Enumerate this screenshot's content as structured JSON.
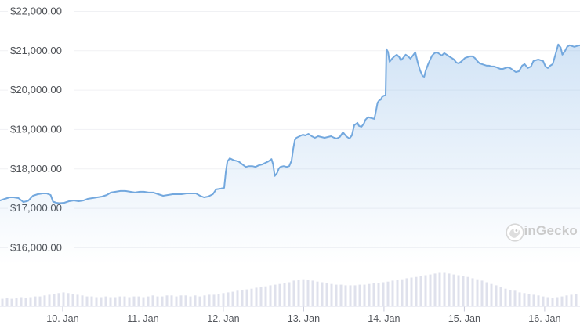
{
  "watermark": {
    "text": "CoinGecko",
    "icon": "coingecko-gecko-logo"
  },
  "colors": {
    "line": "#73a8de",
    "area_fill": "#79aee4",
    "grid": "#f0f1f4",
    "volume_bar": "#dfe1ec",
    "tick": "#c7c9da",
    "y_label_text": "#4f5257",
    "x_label_text": "#54575d",
    "watermark_text": "#cbcbcb",
    "background": "#ffffff"
  },
  "chart_data": {
    "type": "area",
    "title": "",
    "xlabel": "",
    "ylabel": "",
    "grid": "horizontal",
    "legend": "none",
    "x_axis": {
      "tick_labels": [
        "10. Jan",
        "11. Jan",
        "12. Jan",
        "13. Jan",
        "14. Jan",
        "15. Jan",
        "16. Jan"
      ],
      "tick_days": [
        0,
        1,
        2,
        3,
        4,
        5,
        6
      ]
    },
    "y_axis": {
      "tick_labels": [
        "$16,000.00",
        "$17,000.00",
        "$18,000.00",
        "$19,000.00",
        "$20,000.00",
        "$21,000.00",
        "$22,000.00"
      ],
      "tick_values": [
        16000,
        17000,
        18000,
        19000,
        20000,
        21000,
        22000
      ]
    },
    "xlim_days": [
      -0.78,
      6.44
    ],
    "ylim": [
      15322,
      22278
    ],
    "series": [
      {
        "name": "price_usd",
        "points": [
          [
            -0.78,
            17190
          ],
          [
            -0.72,
            17230
          ],
          [
            -0.66,
            17270
          ],
          [
            -0.61,
            17270
          ],
          [
            -0.55,
            17250
          ],
          [
            -0.49,
            17150
          ],
          [
            -0.43,
            17180
          ],
          [
            -0.37,
            17310
          ],
          [
            -0.31,
            17350
          ],
          [
            -0.25,
            17370
          ],
          [
            -0.2,
            17370
          ],
          [
            -0.15,
            17330
          ],
          [
            -0.12,
            17160
          ],
          [
            -0.08,
            17130
          ],
          [
            -0.04,
            17120
          ],
          [
            0.02,
            17130
          ],
          [
            0.08,
            17170
          ],
          [
            0.14,
            17190
          ],
          [
            0.2,
            17170
          ],
          [
            0.26,
            17190
          ],
          [
            0.31,
            17230
          ],
          [
            0.37,
            17250
          ],
          [
            0.43,
            17270
          ],
          [
            0.49,
            17290
          ],
          [
            0.55,
            17330
          ],
          [
            0.6,
            17390
          ],
          [
            0.66,
            17410
          ],
          [
            0.72,
            17430
          ],
          [
            0.78,
            17430
          ],
          [
            0.84,
            17410
          ],
          [
            0.9,
            17390
          ],
          [
            0.96,
            17410
          ],
          [
            1.01,
            17410
          ],
          [
            1.07,
            17390
          ],
          [
            1.13,
            17390
          ],
          [
            1.19,
            17350
          ],
          [
            1.25,
            17310
          ],
          [
            1.31,
            17330
          ],
          [
            1.37,
            17350
          ],
          [
            1.43,
            17350
          ],
          [
            1.48,
            17350
          ],
          [
            1.54,
            17370
          ],
          [
            1.6,
            17370
          ],
          [
            1.66,
            17370
          ],
          [
            1.71,
            17310
          ],
          [
            1.76,
            17270
          ],
          [
            1.81,
            17290
          ],
          [
            1.87,
            17350
          ],
          [
            1.91,
            17470
          ],
          [
            1.97,
            17490
          ],
          [
            2.01,
            17510
          ],
          [
            2.03,
            17900
          ],
          [
            2.05,
            18180
          ],
          [
            2.08,
            18260
          ],
          [
            2.13,
            18210
          ],
          [
            2.19,
            18180
          ],
          [
            2.24,
            18100
          ],
          [
            2.28,
            18040
          ],
          [
            2.32,
            18060
          ],
          [
            2.36,
            18060
          ],
          [
            2.4,
            18040
          ],
          [
            2.44,
            18080
          ],
          [
            2.48,
            18100
          ],
          [
            2.52,
            18140
          ],
          [
            2.56,
            18180
          ],
          [
            2.6,
            18240
          ],
          [
            2.62,
            18100
          ],
          [
            2.64,
            17810
          ],
          [
            2.67,
            17890
          ],
          [
            2.69,
            18000
          ],
          [
            2.71,
            18040
          ],
          [
            2.75,
            18060
          ],
          [
            2.79,
            18040
          ],
          [
            2.82,
            18060
          ],
          [
            2.85,
            18200
          ],
          [
            2.87,
            18500
          ],
          [
            2.89,
            18720
          ],
          [
            2.91,
            18780
          ],
          [
            2.95,
            18820
          ],
          [
            2.99,
            18860
          ],
          [
            3.02,
            18840
          ],
          [
            3.06,
            18880
          ],
          [
            3.1,
            18820
          ],
          [
            3.14,
            18780
          ],
          [
            3.18,
            18820
          ],
          [
            3.22,
            18800
          ],
          [
            3.26,
            18780
          ],
          [
            3.3,
            18800
          ],
          [
            3.34,
            18820
          ],
          [
            3.38,
            18780
          ],
          [
            3.41,
            18760
          ],
          [
            3.45,
            18800
          ],
          [
            3.49,
            18920
          ],
          [
            3.53,
            18820
          ],
          [
            3.57,
            18760
          ],
          [
            3.6,
            18840
          ],
          [
            3.63,
            19100
          ],
          [
            3.67,
            19160
          ],
          [
            3.69,
            19080
          ],
          [
            3.72,
            19060
          ],
          [
            3.75,
            19140
          ],
          [
            3.77,
            19240
          ],
          [
            3.79,
            19280
          ],
          [
            3.81,
            19300
          ],
          [
            3.84,
            19280
          ],
          [
            3.88,
            19260
          ],
          [
            3.9,
            19460
          ],
          [
            3.92,
            19670
          ],
          [
            3.94,
            19730
          ],
          [
            3.96,
            19750
          ],
          [
            3.98,
            19830
          ],
          [
            4.0,
            19850
          ],
          [
            4.02,
            19860
          ],
          [
            4.03,
            21030
          ],
          [
            4.05,
            20960
          ],
          [
            4.07,
            20710
          ],
          [
            4.1,
            20790
          ],
          [
            4.13,
            20850
          ],
          [
            4.16,
            20890
          ],
          [
            4.19,
            20830
          ],
          [
            4.21,
            20750
          ],
          [
            4.24,
            20810
          ],
          [
            4.27,
            20890
          ],
          [
            4.3,
            20850
          ],
          [
            4.33,
            20790
          ],
          [
            4.36,
            20870
          ],
          [
            4.39,
            20950
          ],
          [
            4.42,
            20690
          ],
          [
            4.45,
            20490
          ],
          [
            4.48,
            20350
          ],
          [
            4.5,
            20330
          ],
          [
            4.52,
            20490
          ],
          [
            4.55,
            20650
          ],
          [
            4.58,
            20790
          ],
          [
            4.6,
            20870
          ],
          [
            4.63,
            20930
          ],
          [
            4.66,
            20950
          ],
          [
            4.69,
            20910
          ],
          [
            4.72,
            20870
          ],
          [
            4.75,
            20930
          ],
          [
            4.78,
            20890
          ],
          [
            4.81,
            20850
          ],
          [
            4.84,
            20810
          ],
          [
            4.87,
            20770
          ],
          [
            4.9,
            20690
          ],
          [
            4.93,
            20670
          ],
          [
            4.96,
            20710
          ],
          [
            4.99,
            20770
          ],
          [
            5.01,
            20810
          ],
          [
            5.04,
            20830
          ],
          [
            5.07,
            20850
          ],
          [
            5.1,
            20850
          ],
          [
            5.13,
            20810
          ],
          [
            5.16,
            20730
          ],
          [
            5.19,
            20670
          ],
          [
            5.22,
            20650
          ],
          [
            5.25,
            20630
          ],
          [
            5.28,
            20610
          ],
          [
            5.31,
            20610
          ],
          [
            5.34,
            20590
          ],
          [
            5.37,
            20590
          ],
          [
            5.4,
            20570
          ],
          [
            5.42,
            20550
          ],
          [
            5.45,
            20530
          ],
          [
            5.48,
            20530
          ],
          [
            5.51,
            20550
          ],
          [
            5.54,
            20570
          ],
          [
            5.57,
            20550
          ],
          [
            5.6,
            20510
          ],
          [
            5.64,
            20450
          ],
          [
            5.68,
            20470
          ],
          [
            5.72,
            20610
          ],
          [
            5.75,
            20650
          ],
          [
            5.79,
            20550
          ],
          [
            5.83,
            20590
          ],
          [
            5.86,
            20730
          ],
          [
            5.89,
            20750
          ],
          [
            5.92,
            20770
          ],
          [
            5.95,
            20750
          ],
          [
            5.98,
            20730
          ],
          [
            6.01,
            20590
          ],
          [
            6.04,
            20550
          ],
          [
            6.07,
            20610
          ],
          [
            6.1,
            20650
          ],
          [
            6.12,
            20790
          ],
          [
            6.15,
            21010
          ],
          [
            6.17,
            21150
          ],
          [
            6.2,
            21070
          ],
          [
            6.22,
            20890
          ],
          [
            6.25,
            20970
          ],
          [
            6.28,
            21090
          ],
          [
            6.31,
            21130
          ],
          [
            6.34,
            21110
          ],
          [
            6.37,
            21090
          ],
          [
            6.4,
            21110
          ],
          [
            6.44,
            21130
          ]
        ]
      }
    ],
    "volume": {
      "note": "relative bar heights, no numeric axis shown",
      "relative_heights": [
        0.23,
        0.26,
        0.23,
        0.26,
        0.28,
        0.26,
        0.28,
        0.3,
        0.3,
        0.33,
        0.35,
        0.37,
        0.4,
        0.42,
        0.4,
        0.37,
        0.35,
        0.33,
        0.3,
        0.3,
        0.28,
        0.28,
        0.3,
        0.28,
        0.28,
        0.3,
        0.3,
        0.28,
        0.3,
        0.3,
        0.28,
        0.3,
        0.33,
        0.3,
        0.3,
        0.33,
        0.33,
        0.3,
        0.33,
        0.33,
        0.3,
        0.33,
        0.3,
        0.33,
        0.35,
        0.35,
        0.37,
        0.4,
        0.42,
        0.44,
        0.47,
        0.49,
        0.51,
        0.53,
        0.56,
        0.58,
        0.6,
        0.63,
        0.65,
        0.67,
        0.7,
        0.72,
        0.77,
        0.79,
        0.81,
        0.79,
        0.77,
        0.74,
        0.72,
        0.7,
        0.67,
        0.65,
        0.65,
        0.63,
        0.63,
        0.63,
        0.65,
        0.65,
        0.67,
        0.7,
        0.7,
        0.72,
        0.74,
        0.77,
        0.79,
        0.81,
        0.84,
        0.86,
        0.88,
        0.91,
        0.93,
        0.95,
        0.98,
        1.0,
        1.0,
        0.98,
        0.95,
        0.93,
        0.91,
        0.88,
        0.84,
        0.81,
        0.77,
        0.72,
        0.67,
        0.63,
        0.58,
        0.53,
        0.49,
        0.47,
        0.42,
        0.4,
        0.37,
        0.35,
        0.33,
        0.3,
        0.28,
        0.26,
        0.28,
        0.3,
        0.33,
        0.35,
        0.37
      ]
    }
  }
}
